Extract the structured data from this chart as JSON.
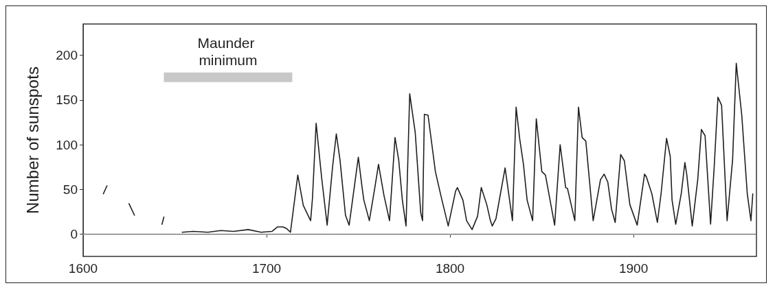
{
  "chart_data": {
    "type": "line",
    "ylabel": "Number of sunspots",
    "xlim": [
      1600,
      1967
    ],
    "xticks": [
      1600,
      1700,
      1800,
      1900
    ],
    "ylim": [
      -25,
      235
    ],
    "yticks": [
      0,
      50,
      100,
      150,
      200
    ],
    "grid": false,
    "marker": "none",
    "line_style": "solid",
    "ref_lines": [
      {
        "axis": "y",
        "value": 0,
        "color": "#b0b0b0",
        "line_style": "dotted"
      }
    ],
    "bands": [
      {
        "axis": "x",
        "from": 1644,
        "to": 1714,
        "label": "Maunder minimum",
        "color": "#c8c8c8"
      }
    ],
    "series": [
      {
        "color": "#1e1e1e",
        "x": [
          1611,
          1613,
          1620,
          1625,
          1628,
          1635,
          1643,
          1644,
          1650,
          1654,
          1660,
          1668,
          1675,
          1682,
          1690,
          1697,
          1703,
          1706,
          1709,
          1711,
          1713,
          1717,
          1720,
          1724,
          1725,
          1727,
          1730,
          1733,
          1736,
          1738,
          1740,
          1743,
          1745,
          1750,
          1752,
          1753,
          1756,
          1759,
          1761,
          1764,
          1767,
          1770,
          1772,
          1774,
          1776,
          1778,
          1781,
          1784,
          1785,
          1786,
          1788,
          1792,
          1795,
          1799,
          1803,
          1804,
          1807,
          1809,
          1812,
          1815,
          1817,
          1820,
          1822,
          1823,
          1825,
          1830,
          1834,
          1836,
          1838,
          1840,
          1842,
          1845,
          1847,
          1850,
          1852,
          1857,
          1860,
          1863,
          1864,
          1868,
          1870,
          1872,
          1874,
          1878,
          1882,
          1884,
          1886,
          1888,
          1890,
          1893,
          1895,
          1898,
          1902,
          1906,
          1907,
          1910,
          1913,
          1915,
          1918,
          1920,
          1921,
          1923,
          1926,
          1928,
          1929,
          1932,
          1935,
          1937,
          1939,
          1942,
          1944,
          1946,
          1948,
          1951,
          1954,
          1956,
          1959,
          1962,
          1964,
          1965
        ],
        "values": [
          45,
          54,
          null,
          34,
          21,
          null,
          11,
          19,
          null,
          2,
          3,
          2,
          4,
          3,
          5,
          2,
          3,
          8,
          8,
          6,
          2,
          66,
          32,
          15,
          40,
          124,
          63,
          10,
          76,
          112,
          83,
          21,
          10,
          86,
          53,
          38,
          15,
          52,
          78,
          43,
          15,
          108,
          83,
          38,
          9,
          157,
          114,
          24,
          15,
          134,
          133,
          70,
          43,
          9,
          48,
          52,
          38,
          15,
          5,
          20,
          52,
          33,
          15,
          9,
          17,
          74,
          15,
          142,
          106,
          78,
          38,
          15,
          129,
          70,
          66,
          10,
          100,
          52,
          51,
          15,
          142,
          108,
          104,
          15,
          61,
          67,
          58,
          28,
          13,
          89,
          82,
          33,
          10,
          67,
          64,
          45,
          13,
          45,
          107,
          87,
          38,
          11,
          45,
          80,
          67,
          9,
          61,
          117,
          110,
          11,
          76,
          153,
          144,
          15,
          83,
          191,
          133,
          45,
          15,
          45
        ]
      }
    ]
  }
}
